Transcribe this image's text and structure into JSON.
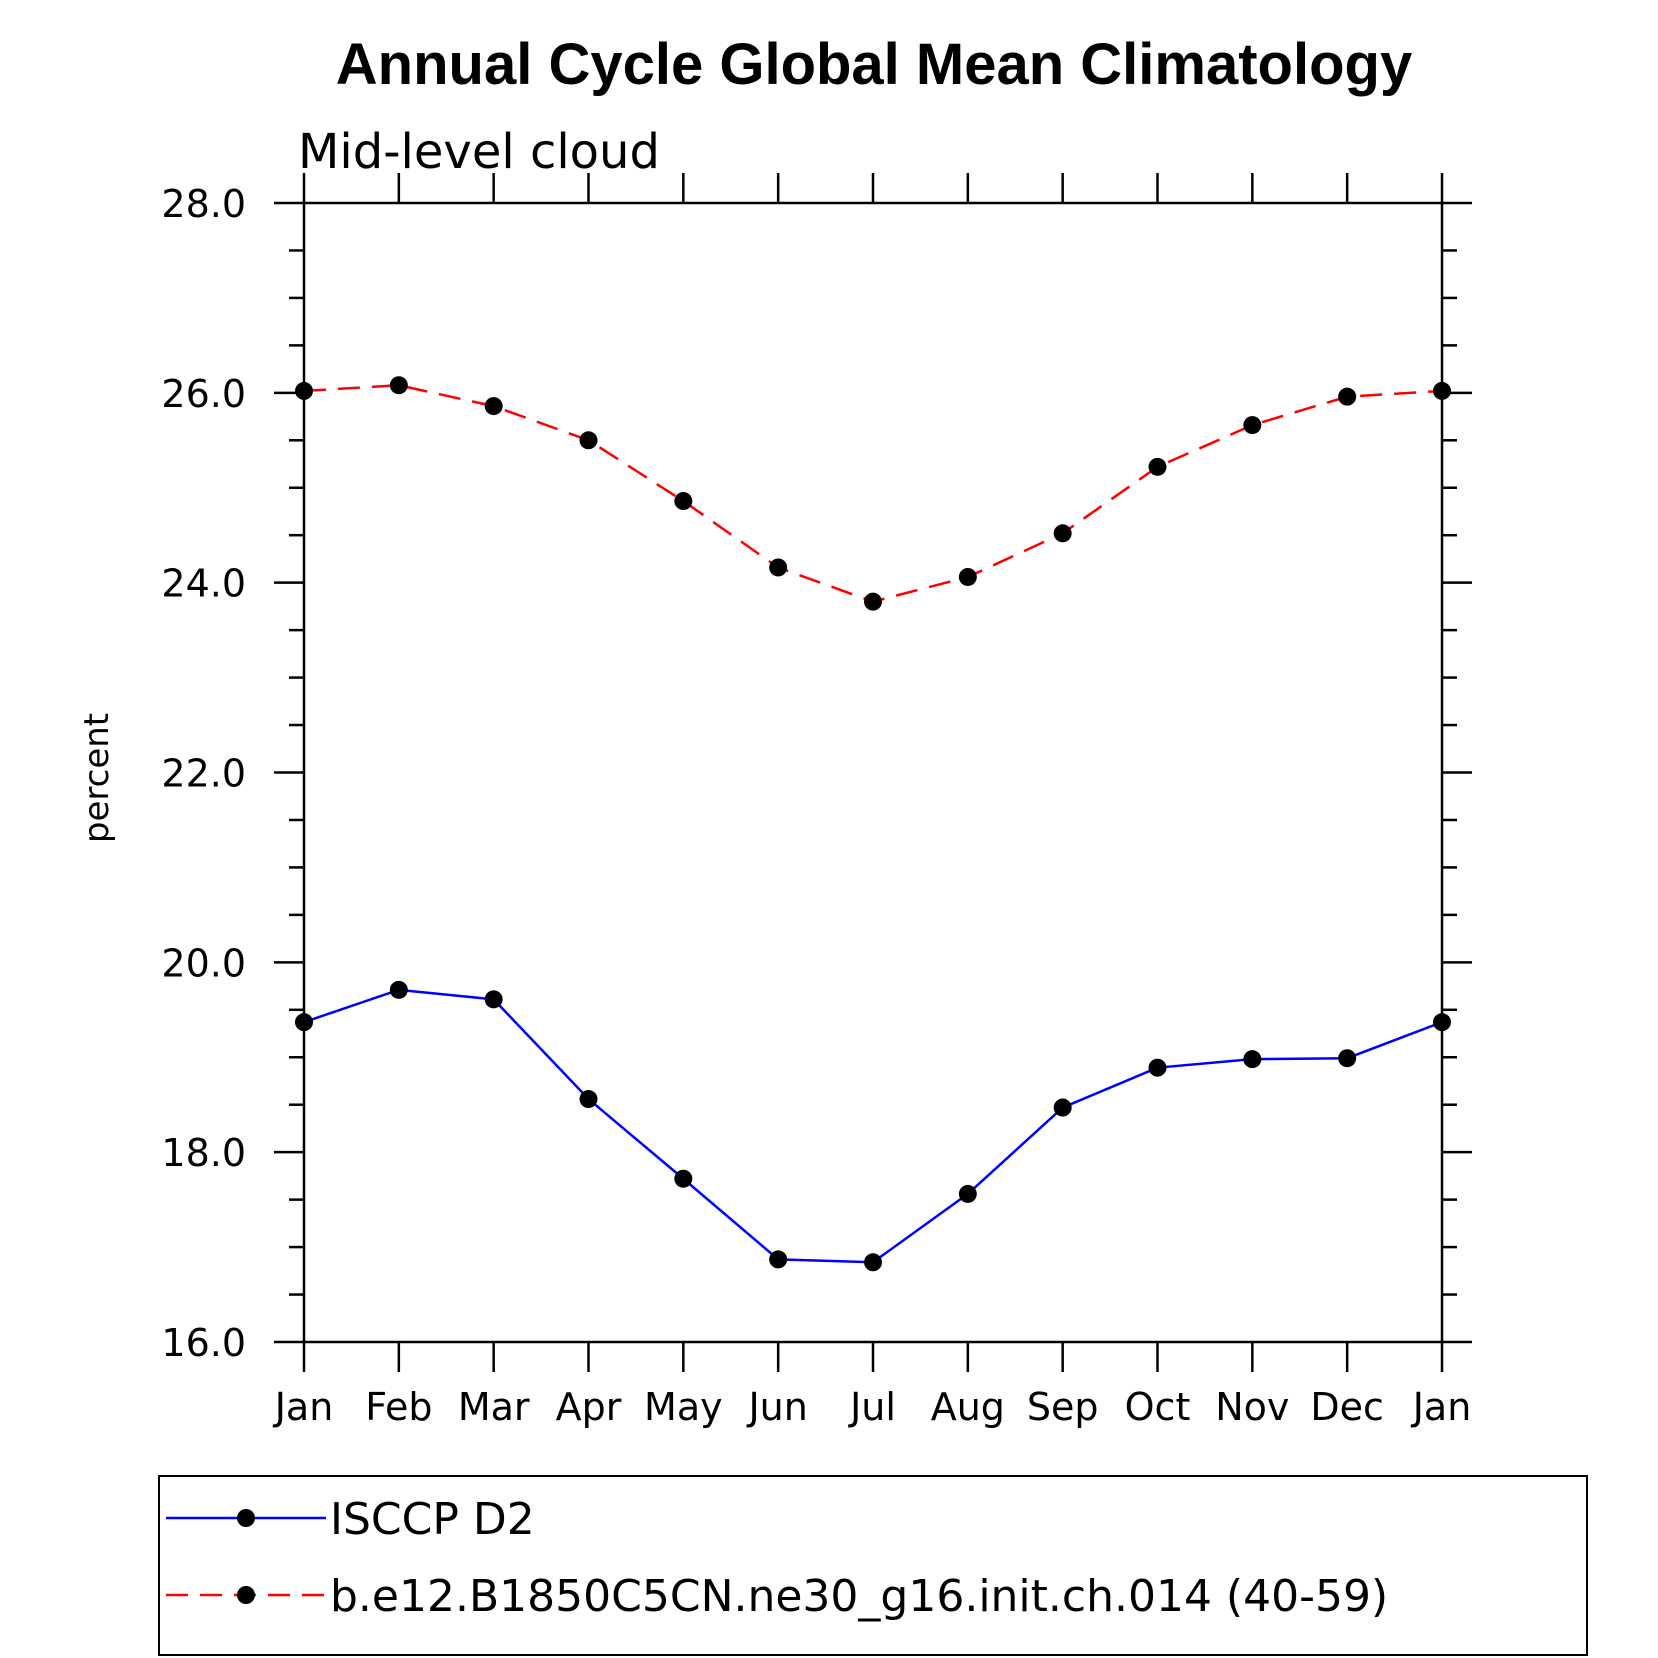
{
  "chart_data": {
    "type": "line",
    "title": "Annual Cycle Global Mean Climatology",
    "subtitle": "Mid-level cloud",
    "xlabel": "",
    "ylabel": "percent",
    "categories": [
      "Jan",
      "Feb",
      "Mar",
      "Apr",
      "May",
      "Jun",
      "Jul",
      "Aug",
      "Sep",
      "Oct",
      "Nov",
      "Dec",
      "Jan"
    ],
    "yticks": [
      "16.0",
      "18.0",
      "20.0",
      "22.0",
      "24.0",
      "26.0",
      "28.0"
    ],
    "ylim": [
      16.0,
      28.0
    ],
    "grid": false,
    "legend_position": "bottom",
    "series": [
      {
        "name": "ISCCP D2",
        "color": "#0000ff",
        "dash": "solid",
        "marker": "filled-circle",
        "values": [
          19.37,
          19.71,
          19.61,
          18.56,
          17.72,
          16.87,
          16.84,
          17.56,
          18.47,
          18.89,
          18.98,
          18.99,
          19.37
        ]
      },
      {
        "name": "b.e12.B1850C5CN.ne30_g16.init.ch.014 (40-59)",
        "color": "#ff0000",
        "dash": "dashed",
        "marker": "filled-circle",
        "values": [
          26.02,
          26.08,
          25.86,
          25.5,
          24.86,
          24.16,
          23.8,
          24.06,
          24.52,
          25.22,
          25.66,
          25.96,
          26.02
        ]
      }
    ]
  }
}
